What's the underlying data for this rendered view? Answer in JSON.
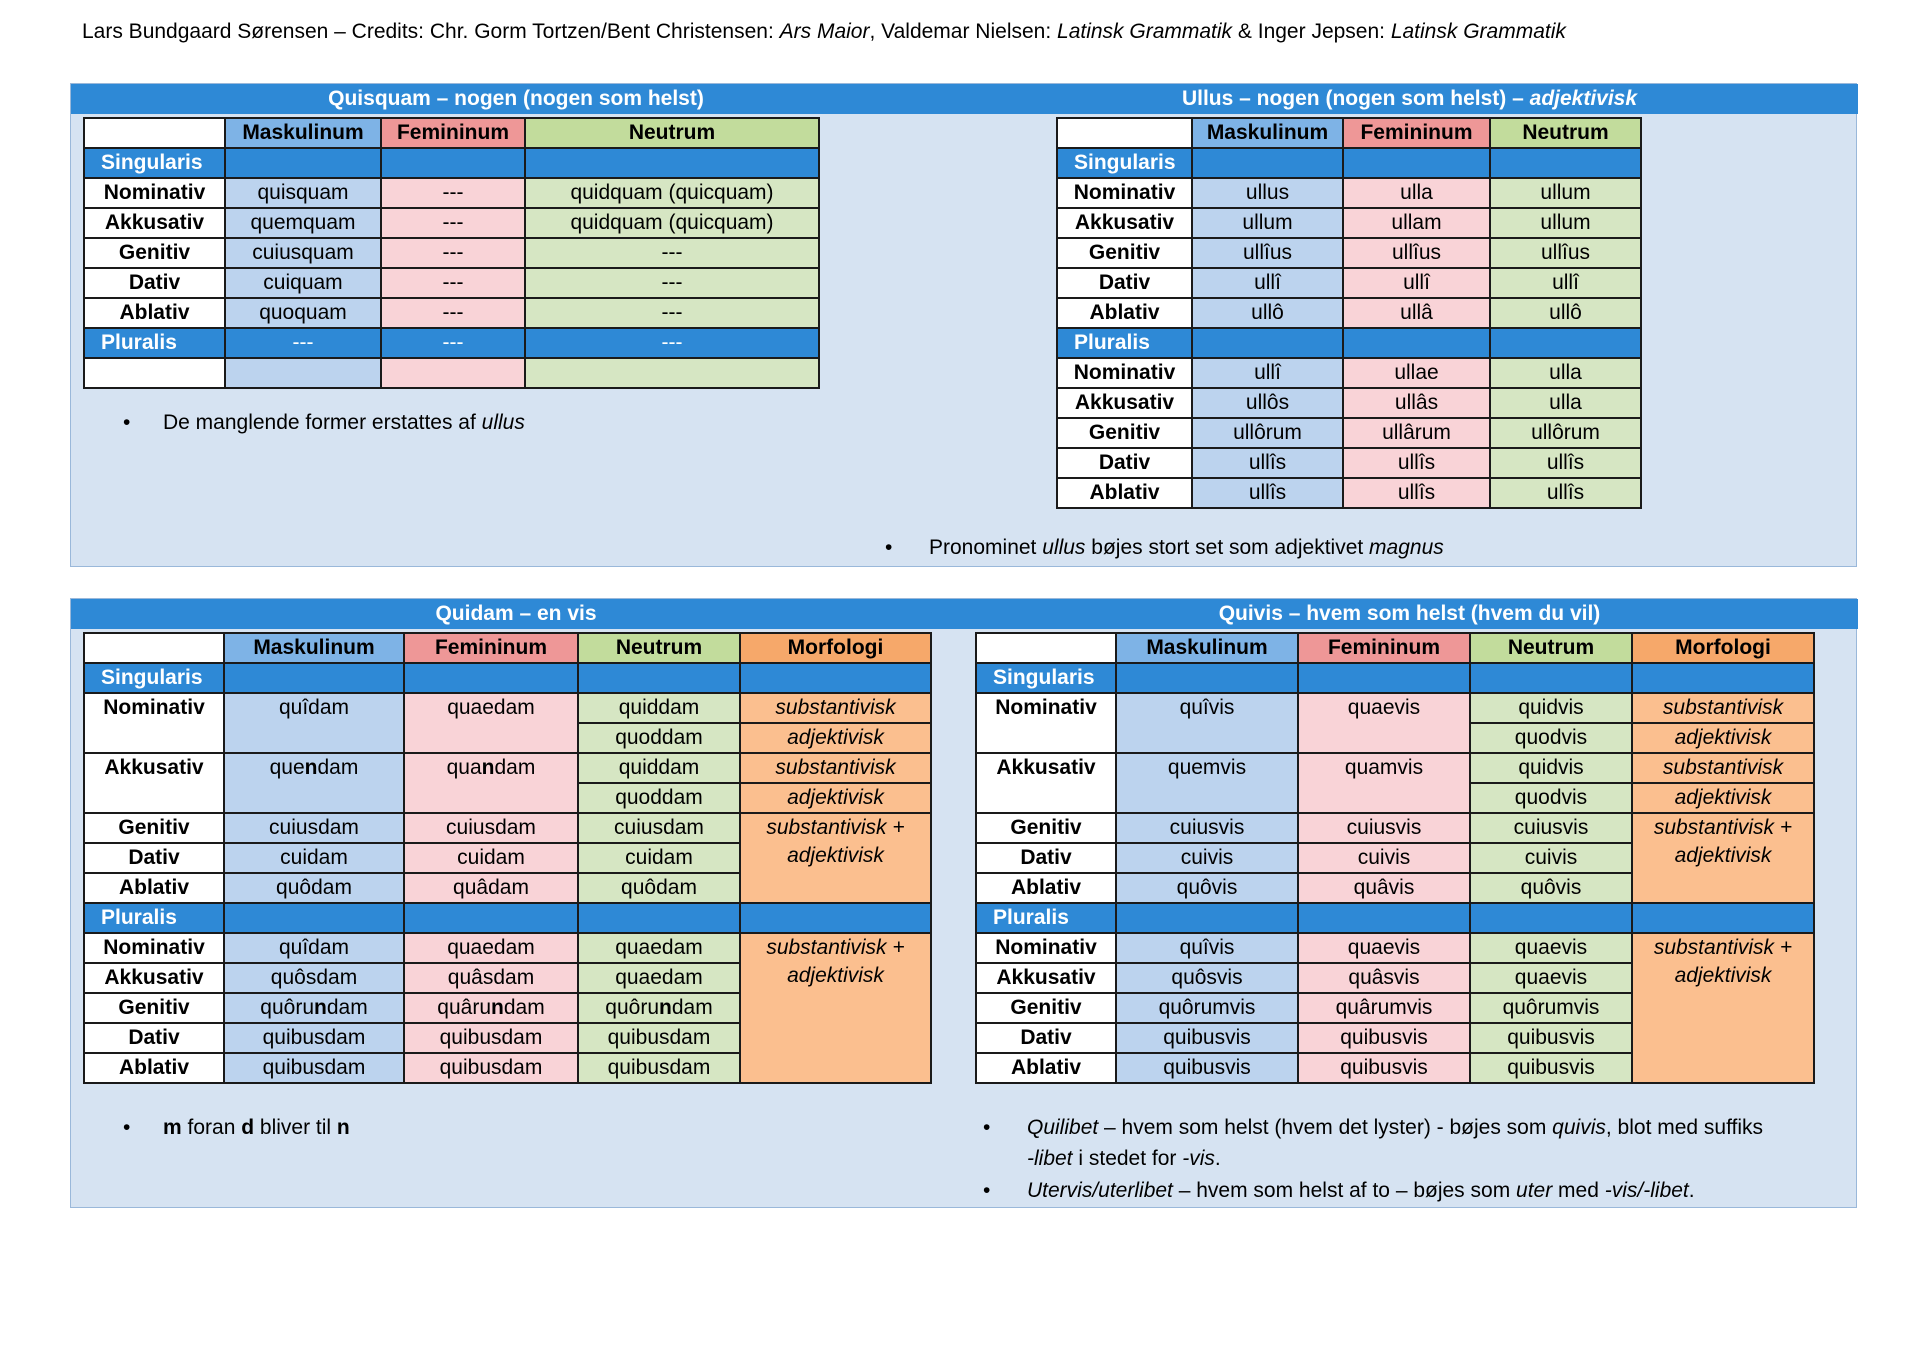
{
  "credits": {
    "a": "Lars Bundgaard Sørensen – Credits: Chr. Gorm Tortzen/Bent Christensen: ",
    "b": "Ars Maior",
    "c": ", Valdemar Nielsen: ",
    "d": "Latinsk Grammatik",
    "e": " & Inger Jepsen: ",
    "f": "Latinsk Grammatik"
  },
  "bullet": "•",
  "headers": {
    "masc": "Maskulinum",
    "fem": "Femininum",
    "neut": "Neutrum",
    "morf": "Morfologi"
  },
  "sections": {
    "sing": "Singularis",
    "plur": "Pluralis"
  },
  "cases": {
    "nom": "Nominativ",
    "akk": "Akkusativ",
    "gen": "Genitiv",
    "dat": "Dativ",
    "abl": "Ablativ"
  },
  "quisquam": {
    "title": "Quisquam – nogen (nogen som helst)",
    "nom": {
      "m": "quisquam",
      "f": "---",
      "n": "quidquam (quicquam)"
    },
    "akk": {
      "m": "quemquam",
      "f": "---",
      "n": "quidquam (quicquam)"
    },
    "gen": {
      "m": "cuiusquam",
      "f": "---",
      "n": "---"
    },
    "dat": {
      "m": "cuiquam",
      "f": "---",
      "n": "---"
    },
    "abl": {
      "m": "quoquam",
      "f": "---",
      "n": "---"
    },
    "plur": {
      "m": "---",
      "f": "---",
      "n": "---"
    },
    "note_a": "De manglende former erstattes af ",
    "note_b": "ullus"
  },
  "ullus": {
    "title_a": "Ullus – nogen (nogen som helst) – ",
    "title_b": "adjektivisk",
    "sg": {
      "nom": [
        "ullus",
        "ulla",
        "ullum"
      ],
      "akk": [
        "ullum",
        "ullam",
        "ullum"
      ],
      "gen": [
        "ullîus",
        "ullîus",
        "ullîus"
      ],
      "dat": [
        "ullî",
        "ullî",
        "ullî"
      ],
      "abl": [
        "ullô",
        "ullâ",
        "ullô"
      ]
    },
    "pl": {
      "nom": [
        "ullî",
        "ullae",
        "ulla"
      ],
      "akk": [
        "ullôs",
        "ullâs",
        "ulla"
      ],
      "gen": [
        "ullôrum",
        "ullârum",
        "ullôrum"
      ],
      "dat": [
        "ullîs",
        "ullîs",
        "ullîs"
      ],
      "abl": [
        "ullîs",
        "ullîs",
        "ullîs"
      ]
    },
    "note_a": "Pronominet ",
    "note_b": "ullus",
    "note_c": " bøjes stort set som adjektivet ",
    "note_d": "magnus"
  },
  "quidam": {
    "title": "Quidam – en vis",
    "nom": {
      "m": "quîdam",
      "f": "quaedam",
      "n1": "quiddam",
      "n2": "quoddam"
    },
    "akk": {
      "m_a": "que",
      "m_b": "n",
      "m_c": "dam",
      "f_a": "qua",
      "f_b": "n",
      "f_c": "dam",
      "n1": "quiddam",
      "n2": "quoddam"
    },
    "gen": [
      "cuiusdam",
      "cuiusdam",
      "cuiusdam"
    ],
    "dat": [
      "cuidam",
      "cuidam",
      "cuidam"
    ],
    "abl": [
      "quôdam",
      "quâdam",
      "quôdam"
    ],
    "pl": {
      "nom": [
        "quîdam",
        "quaedam",
        "quaedam"
      ],
      "akk": [
        "quôsdam",
        "quâsdam",
        "quaedam"
      ],
      "gen_m_a": "quôru",
      "gen_m_b": "n",
      "gen_m_c": "dam",
      "gen_f_a": "quâru",
      "gen_f_b": "n",
      "gen_f_c": "dam",
      "gen_n_a": "quôru",
      "gen_n_b": "n",
      "gen_n_c": "dam",
      "dat": [
        "quibusdam",
        "quibusdam",
        "quibusdam"
      ],
      "abl": [
        "quibusdam",
        "quibusdam",
        "quibusdam"
      ]
    },
    "note_a": "m",
    "note_b": " foran ",
    "note_c": "d",
    "note_d": " bliver til ",
    "note_e": "n"
  },
  "quivis": {
    "title": "Quivis – hvem som helst (hvem du vil)",
    "nom": {
      "m": "quîvis",
      "f": "quaevis",
      "n1": "quidvis",
      "n2": "quodvis"
    },
    "akk": {
      "m": "quemvis",
      "f": "quamvis",
      "n1": "quidvis",
      "n2": "quodvis"
    },
    "gen": [
      "cuiusvis",
      "cuiusvis",
      "cuiusvis"
    ],
    "dat": [
      "cuivis",
      "cuivis",
      "cuivis"
    ],
    "abl": [
      "quôvis",
      "quâvis",
      "quôvis"
    ],
    "pl": {
      "nom": [
        "quîvis",
        "quaevis",
        "quaevis"
      ],
      "akk": [
        "quôsvis",
        "quâsvis",
        "quaevis"
      ],
      "gen": [
        "quôrumvis",
        "quârumvis",
        "quôrumvis"
      ],
      "dat": [
        "quibusvis",
        "quibusvis",
        "quibusvis"
      ],
      "abl": [
        "quibusvis",
        "quibusvis",
        "quibusvis"
      ]
    },
    "note1_a": "Quilibet",
    "note1_b": " – hvem som helst (hvem det lyster) - bøjes som ",
    "note1_c": "quivis",
    "note1_d": ", blot med suffiks",
    "note1_e": "-libet",
    "note1_f": " i stedet for ",
    "note1_g": "-vis",
    "note1_h": ".",
    "note2_a": "Utervis/uterlibet",
    "note2_b": " – hvem som helst af to – bøjes som ",
    "note2_c": "uter",
    "note2_d": " med ",
    "note2_e": "-vis/-libet",
    "note2_f": "."
  },
  "morph": {
    "subst": "substantivisk",
    "adj": "adjektivisk",
    "both_a": "substantivisk +",
    "both_b": "adjektivisk"
  }
}
